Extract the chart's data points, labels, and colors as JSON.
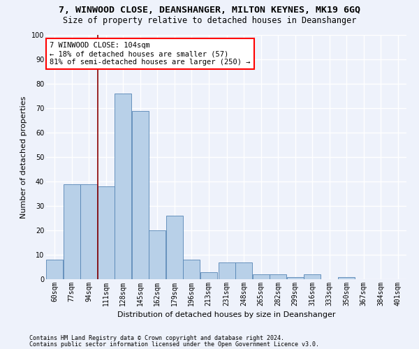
{
  "title": "7, WINWOOD CLOSE, DEANSHANGER, MILTON KEYNES, MK19 6GQ",
  "subtitle": "Size of property relative to detached houses in Deanshanger",
  "xlabel": "Distribution of detached houses by size in Deanshanger",
  "ylabel": "Number of detached properties",
  "footnote1": "Contains HM Land Registry data © Crown copyright and database right 2024.",
  "footnote2": "Contains public sector information licensed under the Open Government Licence v3.0.",
  "annotation_line1": "7 WINWOOD CLOSE: 104sqm",
  "annotation_line2": "← 18% of detached houses are smaller (57)",
  "annotation_line3": "81% of semi-detached houses are larger (250) →",
  "bar_color": "#b8d0e8",
  "bar_edge_color": "#5585b5",
  "categories": [
    "60sqm",
    "77sqm",
    "94sqm",
    "111sqm",
    "128sqm",
    "145sqm",
    "162sqm",
    "179sqm",
    "196sqm",
    "213sqm",
    "231sqm",
    "248sqm",
    "265sqm",
    "282sqm",
    "299sqm",
    "316sqm",
    "333sqm",
    "350sqm",
    "367sqm",
    "384sqm",
    "401sqm"
  ],
  "bin_edges": [
    60,
    77,
    94,
    111,
    128,
    145,
    162,
    179,
    196,
    213,
    231,
    248,
    265,
    282,
    299,
    316,
    333,
    350,
    367,
    384,
    401
  ],
  "values": [
    8,
    39,
    39,
    38,
    76,
    69,
    20,
    26,
    8,
    3,
    7,
    7,
    2,
    2,
    1,
    2,
    0,
    1,
    0,
    0,
    0
  ],
  "ylim": [
    0,
    100
  ],
  "yticks": [
    0,
    10,
    20,
    30,
    40,
    50,
    60,
    70,
    80,
    90,
    100
  ],
  "background_color": "#eef2fb",
  "grid_color": "#ffffff",
  "title_fontsize": 9.5,
  "subtitle_fontsize": 8.5,
  "axis_label_fontsize": 8,
  "tick_fontsize": 7,
  "footnote_fontsize": 6,
  "annotation_fontsize": 7.5,
  "red_line_x": 111
}
